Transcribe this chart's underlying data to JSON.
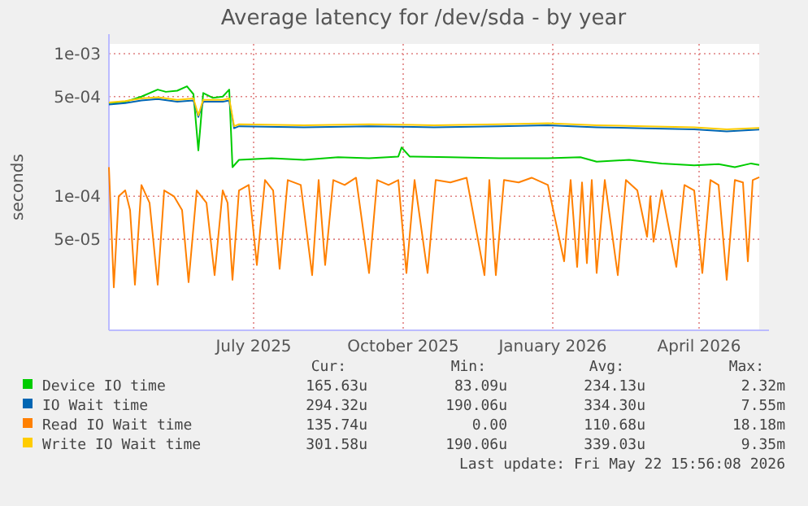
{
  "chart_data": {
    "type": "line",
    "title": "Average latency for /dev/sda - by year",
    "ylabel": "seconds",
    "log": "y",
    "grid": true,
    "legend": "bottom",
    "marker": "none",
    "line_style": "solid",
    "xlim": [
      "2025-04-17",
      "2026-05-22"
    ],
    "xticks": [
      {
        "value": "2025-07-15",
        "label": "July 2025"
      },
      {
        "value": "2025-10-15",
        "label": "October 2025"
      },
      {
        "value": "2026-01-15",
        "label": "January 2026"
      },
      {
        "value": "2026-04-15",
        "label": "April 2026"
      }
    ],
    "ylim": [
      1.15e-05,
      0.00117
    ],
    "yticks": [
      {
        "value": 0.001,
        "label": "1e-03"
      },
      {
        "value": 0.0005,
        "label": "5e-04"
      },
      {
        "value": 0.0001,
        "label": "1e-04"
      },
      {
        "value": 5e-05,
        "label": "5e-05"
      }
    ],
    "series": [
      {
        "name": "Device IO time",
        "color": "#00cc00",
        "x": [
          "2025-04-17",
          "2025-04-27",
          "2025-05-07",
          "2025-05-17",
          "2025-05-22",
          "2025-05-29",
          "2025-06-04",
          "2025-06-08",
          "2025-06-11",
          "2025-06-14",
          "2025-06-20",
          "2025-06-26",
          "2025-06-30",
          "2025-07-02",
          "2025-07-06",
          "2025-07-26",
          "2025-08-15",
          "2025-09-05",
          "2025-09-24",
          "2025-10-12",
          "2025-10-14",
          "2025-10-19",
          "2025-11-13",
          "2025-12-13",
          "2026-01-12",
          "2026-02-01",
          "2026-02-11",
          "2026-03-03",
          "2026-03-23",
          "2026-04-12",
          "2026-04-27",
          "2026-05-07",
          "2026-05-17",
          "2026-05-22"
        ],
        "values": [
          0.00045,
          0.00046,
          0.0005,
          0.00056,
          0.00054,
          0.00055,
          0.00059,
          0.00052,
          0.00021,
          0.00053,
          0.00049,
          0.0005,
          0.00056,
          0.00016,
          0.00018,
          0.000185,
          0.00018,
          0.000188,
          0.000185,
          0.00019,
          0.00022,
          0.00019,
          0.000188,
          0.000185,
          0.000185,
          0.000188,
          0.000175,
          0.00018,
          0.00017,
          0.000165,
          0.000168,
          0.00016,
          0.00017,
          0.000166
        ]
      },
      {
        "name": "IO Wait time",
        "color": "#0066b3",
        "x": [
          "2025-04-17",
          "2025-04-27",
          "2025-05-07",
          "2025-05-17",
          "2025-05-29",
          "2025-06-08",
          "2025-06-11",
          "2025-06-14",
          "2025-06-26",
          "2025-06-30",
          "2025-07-03",
          "2025-07-06",
          "2025-08-15",
          "2025-09-24",
          "2025-11-03",
          "2025-12-13",
          "2026-01-12",
          "2026-02-11",
          "2026-03-13",
          "2026-04-12",
          "2026-05-02",
          "2026-05-22"
        ],
        "values": [
          0.00044,
          0.00045,
          0.00047,
          0.00048,
          0.00046,
          0.00047,
          0.00036,
          0.00046,
          0.00046,
          0.00047,
          0.0003,
          0.00031,
          0.000305,
          0.00031,
          0.000305,
          0.00031,
          0.000315,
          0.000305,
          0.0003,
          0.000295,
          0.000285,
          0.000294
        ]
      },
      {
        "name": "Read IO Wait time",
        "color": "#ff8000",
        "x": [
          "2025-04-17",
          "2025-04-20",
          "2025-04-23",
          "2025-04-27",
          "2025-04-30",
          "2025-05-03",
          "2025-05-07",
          "2025-05-12",
          "2025-05-17",
          "2025-05-21",
          "2025-05-27",
          "2025-06-01",
          "2025-06-05",
          "2025-06-10",
          "2025-06-16",
          "2025-06-21",
          "2025-06-26",
          "2025-06-29",
          "2025-07-02",
          "2025-07-06",
          "2025-07-12",
          "2025-07-17",
          "2025-07-22",
          "2025-07-27",
          "2025-07-31",
          "2025-08-05",
          "2025-08-13",
          "2025-08-20",
          "2025-08-24",
          "2025-08-28",
          "2025-09-02",
          "2025-09-09",
          "2025-09-16",
          "2025-09-24",
          "2025-09-29",
          "2025-10-06",
          "2025-10-12",
          "2025-10-17",
          "2025-10-22",
          "2025-10-30",
          "2025-11-04",
          "2025-11-13",
          "2025-11-23",
          "2025-12-04",
          "2025-12-07",
          "2025-12-11",
          "2025-12-16",
          "2025-12-25",
          "2026-01-02",
          "2026-01-12",
          "2026-01-22",
          "2026-01-26",
          "2026-01-30",
          "2026-02-02",
          "2026-02-05",
          "2026-02-08",
          "2026-02-11",
          "2026-02-16",
          "2026-02-24",
          "2026-03-01",
          "2026-03-08",
          "2026-03-14",
          "2026-03-16",
          "2026-03-18",
          "2026-03-23",
          "2026-04-01",
          "2026-04-06",
          "2026-04-12",
          "2026-04-17",
          "2026-04-22",
          "2026-04-27",
          "2026-05-02",
          "2026-05-07",
          "2026-05-12",
          "2026-05-15",
          "2026-05-18",
          "2026-05-22"
        ],
        "values": [
          0.00016,
          2.3e-05,
          0.0001,
          0.00011,
          8e-05,
          2.4e-05,
          0.00012,
          9e-05,
          2.4e-05,
          0.00011,
          0.0001,
          8e-05,
          2.5e-05,
          0.00011,
          9e-05,
          2.8e-05,
          0.00011,
          9e-05,
          2.6e-05,
          0.00011,
          0.00012,
          3.3e-05,
          0.00013,
          0.00011,
          3.1e-05,
          0.00013,
          0.00012,
          2.8e-05,
          0.00013,
          3.3e-05,
          0.00013,
          0.00012,
          0.000135,
          2.9e-05,
          0.00013,
          0.00012,
          0.00013,
          2.9e-05,
          0.00013,
          2.9e-05,
          0.00013,
          0.000125,
          0.000135,
          2.8e-05,
          0.00013,
          2.8e-05,
          0.00013,
          0.000125,
          0.000135,
          0.00012,
          3.5e-05,
          0.00013,
          3.2e-05,
          0.000125,
          3.4e-05,
          0.00013,
          2.9e-05,
          0.00013,
          2.8e-05,
          0.00013,
          0.00011,
          5.2e-05,
          0.0001,
          4.8e-05,
          0.00011,
          3.2e-05,
          0.00012,
          0.00011,
          2.9e-05,
          0.00013,
          0.00012,
          2.6e-05,
          0.00013,
          0.000125,
          3.5e-05,
          0.00013,
          0.000136
        ]
      },
      {
        "name": "Write IO Wait time",
        "color": "#ffcc00",
        "x": [
          "2025-04-17",
          "2025-04-27",
          "2025-05-07",
          "2025-05-17",
          "2025-05-29",
          "2025-06-08",
          "2025-06-11",
          "2025-06-14",
          "2025-06-26",
          "2025-06-30",
          "2025-07-03",
          "2025-07-06",
          "2025-08-15",
          "2025-09-24",
          "2025-11-03",
          "2025-12-13",
          "2026-01-12",
          "2026-02-11",
          "2026-03-13",
          "2026-04-12",
          "2026-05-02",
          "2026-05-22"
        ],
        "values": [
          0.000455,
          0.000465,
          0.000485,
          0.000495,
          0.000475,
          0.000485,
          0.00037,
          0.000475,
          0.000475,
          0.000485,
          0.00031,
          0.00032,
          0.000315,
          0.00032,
          0.000315,
          0.00032,
          0.000325,
          0.000315,
          0.00031,
          0.000305,
          0.000295,
          0.000302
        ]
      }
    ],
    "annotations": [
      "Cur:",
      "Min:",
      "Avg:",
      "Max:",
      "165.63u",
      "83.09u",
      "234.13u",
      "2.32m",
      "294.32u",
      "190.06u",
      "334.30u",
      "7.55m",
      "135.74u",
      "0.00",
      "110.68u",
      "18.18m",
      "301.58u",
      "190.06u",
      "339.03u",
      "9.35m",
      "Last update: Fri May 22 15:56:08 2026"
    ]
  }
}
